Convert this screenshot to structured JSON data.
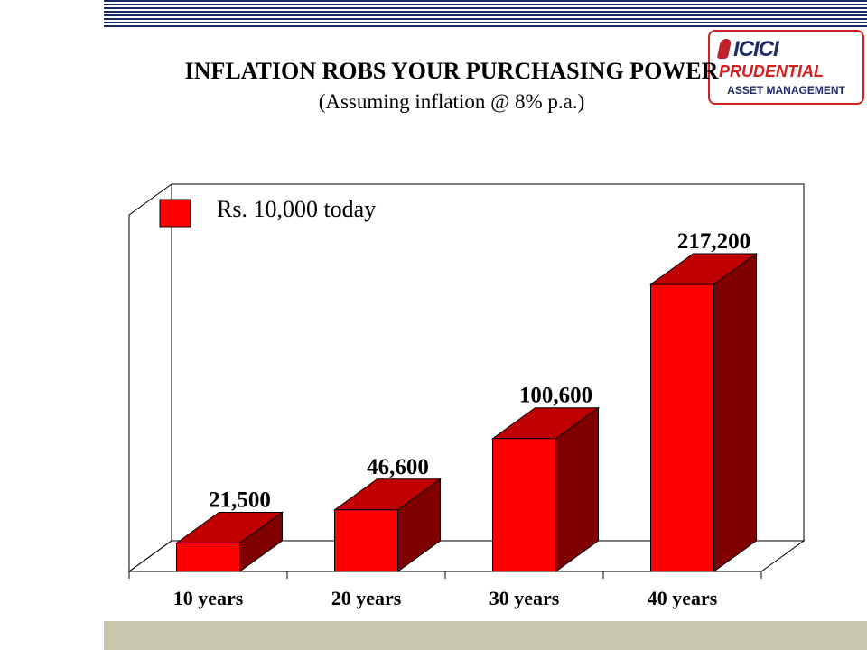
{
  "slide": {
    "title": "INFLATION ROBS YOUR PURCHASING POWER",
    "subtitle": "(Assuming inflation @ 8% p.a.)"
  },
  "logo": {
    "brand": "ICICI",
    "sub": "PRUDENTIAL",
    "tagline": "ASSET MANAGEMENT"
  },
  "colors": {
    "bar_front": "#ff0000",
    "bar_top": "#c00000",
    "bar_side": "#800000",
    "header_stripes": "#1f2a6b",
    "bottom_band": "#c8c7ae"
  },
  "chart_data": {
    "type": "bar",
    "style": "3d",
    "categories": [
      "10 years",
      "20 years",
      "30 years",
      "40 years"
    ],
    "series": [
      {
        "name": "Rs. 10,000 today",
        "values": [
          21500,
          46600,
          100600,
          217200
        ]
      }
    ],
    "data_labels": [
      "21,500",
      "46,600",
      "100,600",
      "217,200"
    ],
    "legend": {
      "position": "top-left",
      "label": "Rs. 10,000 today"
    },
    "ylim": [
      0,
      250000
    ],
    "grid": false
  }
}
